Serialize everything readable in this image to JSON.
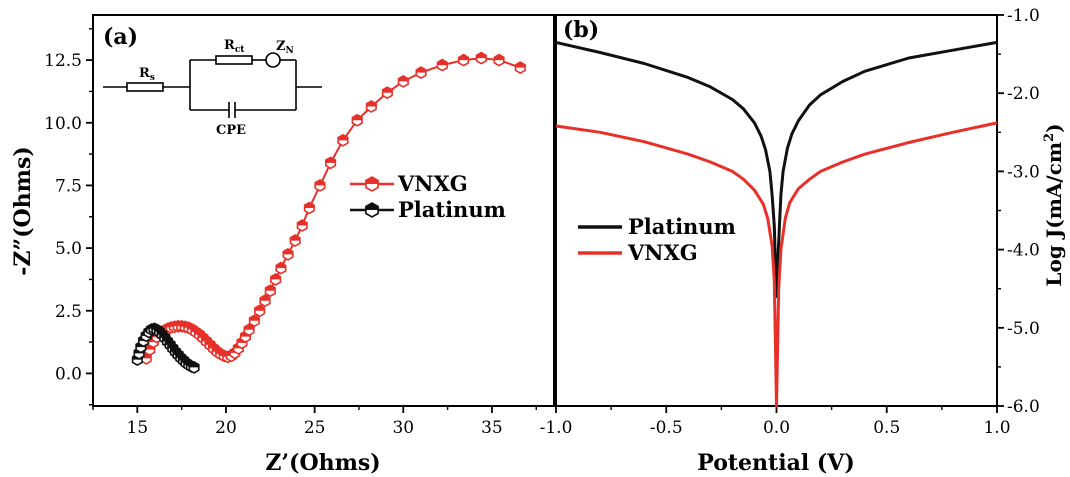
{
  "chart_data": [
    {
      "panel_label": "(a)",
      "type": "scatter",
      "xlabel": "Z’(Ohms)",
      "ylabel": "-Z”(Ohms)",
      "xlim": [
        12.5,
        38.5
      ],
      "ylim": [
        -1.3,
        14.3
      ],
      "xticks": [
        15,
        20,
        25,
        30,
        35
      ],
      "yticks": [
        0.0,
        2.5,
        5.0,
        7.5,
        10.0,
        12.5
      ],
      "xtick_labels": [
        "15",
        "20",
        "25",
        "30",
        "35"
      ],
      "ytick_labels": [
        "0.0",
        "2.5",
        "5.0",
        "7.5",
        "10.0",
        "12.5"
      ],
      "legend_position": "center-right",
      "series": [
        {
          "name": "VNXG",
          "color": "#e8302a",
          "marker": "half-filled-hexagon",
          "points": [
            [
              15.5,
              0.6
            ],
            [
              15.7,
              0.95
            ],
            [
              15.9,
              1.25
            ],
            [
              16.1,
              1.45
            ],
            [
              16.3,
              1.6
            ],
            [
              16.5,
              1.7
            ],
            [
              16.7,
              1.78
            ],
            [
              16.9,
              1.83
            ],
            [
              17.1,
              1.86
            ],
            [
              17.3,
              1.88
            ],
            [
              17.5,
              1.88
            ],
            [
              17.7,
              1.86
            ],
            [
              17.9,
              1.82
            ],
            [
              18.1,
              1.75
            ],
            [
              18.3,
              1.65
            ],
            [
              18.5,
              1.55
            ],
            [
              18.7,
              1.42
            ],
            [
              18.9,
              1.28
            ],
            [
              19.1,
              1.14
            ],
            [
              19.3,
              1.0
            ],
            [
              19.5,
              0.87
            ],
            [
              19.7,
              0.77
            ],
            [
              19.9,
              0.7
            ],
            [
              20.1,
              0.66
            ],
            [
              20.3,
              0.7
            ],
            [
              20.5,
              0.82
            ],
            [
              20.7,
              1.0
            ],
            [
              20.9,
              1.22
            ],
            [
              21.1,
              1.47
            ],
            [
              21.3,
              1.74
            ],
            [
              21.6,
              2.1
            ],
            [
              21.9,
              2.5
            ],
            [
              22.2,
              2.9
            ],
            [
              22.5,
              3.3
            ],
            [
              22.8,
              3.75
            ],
            [
              23.1,
              4.2
            ],
            [
              23.5,
              4.75
            ],
            [
              23.9,
              5.3
            ],
            [
              24.3,
              5.9
            ],
            [
              24.7,
              6.6
            ],
            [
              25.3,
              7.5
            ],
            [
              25.9,
              8.4
            ],
            [
              26.6,
              9.3
            ],
            [
              27.4,
              10.1
            ],
            [
              28.2,
              10.65
            ],
            [
              29.1,
              11.2
            ],
            [
              30.0,
              11.65
            ],
            [
              31.0,
              12.0
            ],
            [
              32.2,
              12.3
            ],
            [
              33.4,
              12.5
            ],
            [
              34.4,
              12.58
            ],
            [
              35.4,
              12.5
            ],
            [
              36.6,
              12.2
            ]
          ]
        },
        {
          "name": "Platinum",
          "color": "#111111",
          "marker": "half-filled-hexagon",
          "points": [
            [
              15.0,
              0.55
            ],
            [
              15.1,
              0.8
            ],
            [
              15.2,
              1.05
            ],
            [
              15.35,
              1.3
            ],
            [
              15.5,
              1.5
            ],
            [
              15.65,
              1.65
            ],
            [
              15.8,
              1.75
            ],
            [
              15.95,
              1.78
            ],
            [
              16.1,
              1.74
            ],
            [
              16.25,
              1.66
            ],
            [
              16.4,
              1.55
            ],
            [
              16.55,
              1.42
            ],
            [
              16.7,
              1.28
            ],
            [
              16.85,
              1.14
            ],
            [
              17.0,
              1.0
            ],
            [
              17.15,
              0.86
            ],
            [
              17.3,
              0.74
            ],
            [
              17.45,
              0.62
            ],
            [
              17.6,
              0.52
            ],
            [
              17.75,
              0.42
            ],
            [
              17.9,
              0.34
            ],
            [
              18.05,
              0.28
            ],
            [
              18.2,
              0.24
            ]
          ]
        }
      ],
      "inset_circuit_labels": [
        "R",
        "s",
        "R",
        "ct",
        "Z",
        "N",
        "CPE"
      ]
    },
    {
      "panel_label": "(b)",
      "type": "line",
      "xlabel": "Potential (V)",
      "ylabel": "Log J(mA/cm²)",
      "ylabel_parts": [
        "Log J(mA/cm",
        "2",
        ")"
      ],
      "xlim": [
        -1.0,
        1.0
      ],
      "ylim": [
        -6.0,
        -1.0
      ],
      "xticks": [
        -1.0,
        -0.5,
        0.0,
        0.5,
        1.0
      ],
      "yticks": [
        -1.0,
        -2.0,
        -3.0,
        -4.0,
        -5.0,
        -6.0
      ],
      "xtick_labels": [
        "-1.0",
        "-0.5",
        "0.0",
        "0.5",
        "1.0"
      ],
      "ytick_labels": [
        "-1.0",
        "-2.0",
        "-3.0",
        "-4.0",
        "-5.0",
        "-6.0"
      ],
      "legend_position": "center-left",
      "series": [
        {
          "name": "Platinum",
          "color": "#111111",
          "points": [
            [
              -1.0,
              -1.35
            ],
            [
              -0.8,
              -1.48
            ],
            [
              -0.6,
              -1.62
            ],
            [
              -0.4,
              -1.8
            ],
            [
              -0.3,
              -1.92
            ],
            [
              -0.2,
              -2.08
            ],
            [
              -0.15,
              -2.2
            ],
            [
              -0.1,
              -2.38
            ],
            [
              -0.07,
              -2.55
            ],
            [
              -0.05,
              -2.72
            ],
            [
              -0.03,
              -3.0
            ],
            [
              -0.02,
              -3.3
            ],
            [
              -0.01,
              -3.7
            ],
            [
              0.0,
              -4.6
            ],
            [
              0.01,
              -3.9
            ],
            [
              0.02,
              -3.3
            ],
            [
              0.03,
              -3.0
            ],
            [
              0.05,
              -2.7
            ],
            [
              0.07,
              -2.52
            ],
            [
              0.1,
              -2.35
            ],
            [
              0.15,
              -2.15
            ],
            [
              0.2,
              -2.02
            ],
            [
              0.3,
              -1.85
            ],
            [
              0.4,
              -1.72
            ],
            [
              0.6,
              -1.55
            ],
            [
              0.8,
              -1.45
            ],
            [
              1.0,
              -1.35
            ]
          ]
        },
        {
          "name": "VNXG",
          "color": "#e8302a",
          "points": [
            [
              -1.0,
              -2.42
            ],
            [
              -0.8,
              -2.5
            ],
            [
              -0.6,
              -2.62
            ],
            [
              -0.4,
              -2.78
            ],
            [
              -0.3,
              -2.88
            ],
            [
              -0.2,
              -3.0
            ],
            [
              -0.15,
              -3.1
            ],
            [
              -0.1,
              -3.24
            ],
            [
              -0.06,
              -3.42
            ],
            [
              -0.04,
              -3.6
            ],
            [
              -0.02,
              -3.95
            ],
            [
              -0.01,
              -4.4
            ],
            [
              0.0,
              -6.0
            ],
            [
              0.01,
              -4.5
            ],
            [
              0.02,
              -4.0
            ],
            [
              0.04,
              -3.6
            ],
            [
              0.06,
              -3.4
            ],
            [
              0.1,
              -3.22
            ],
            [
              0.15,
              -3.1
            ],
            [
              0.2,
              -3.0
            ],
            [
              0.3,
              -2.88
            ],
            [
              0.4,
              -2.78
            ],
            [
              0.6,
              -2.63
            ],
            [
              0.8,
              -2.5
            ],
            [
              1.0,
              -2.38
            ]
          ]
        }
      ]
    }
  ]
}
